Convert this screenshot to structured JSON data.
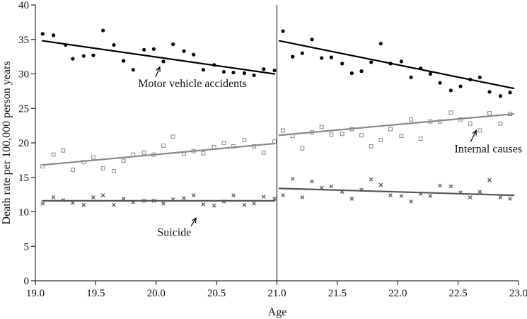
{
  "chart_data": {
    "type": "scatter",
    "title": "",
    "xlabel": "Age",
    "ylabel": "Death rate per 100,000 person years",
    "xlim": [
      19.0,
      23.0
    ],
    "ylim": [
      0,
      40
    ],
    "xticks": [
      "19.0",
      "19.5",
      "20.0",
      "20.5",
      "21.0",
      "21.5",
      "22.0",
      "22.5",
      "23.0"
    ],
    "yticks": [
      "0",
      "5",
      "10",
      "15",
      "20",
      "25",
      "30",
      "35",
      "40"
    ],
    "grid": false,
    "legend": "none",
    "cutoff_x": 21.0,
    "series": [
      {
        "name": "Motor vehicle accidents",
        "marker": "dot",
        "color": "#000000",
        "points": [
          [
            19.06,
            35.8
          ],
          [
            19.15,
            35.6
          ],
          [
            19.25,
            34.2
          ],
          [
            19.31,
            32.2
          ],
          [
            19.4,
            32.6
          ],
          [
            19.48,
            32.7
          ],
          [
            19.56,
            36.3
          ],
          [
            19.65,
            34.2
          ],
          [
            19.73,
            31.9
          ],
          [
            19.81,
            30.6
          ],
          [
            19.9,
            33.5
          ],
          [
            19.98,
            33.6
          ],
          [
            20.06,
            31.8
          ],
          [
            20.14,
            34.3
          ],
          [
            20.23,
            33.3
          ],
          [
            20.31,
            32.8
          ],
          [
            20.39,
            30.6
          ],
          [
            20.48,
            31.3
          ],
          [
            20.56,
            30.3
          ],
          [
            20.64,
            30.2
          ],
          [
            20.73,
            30.1
          ],
          [
            20.81,
            29.8
          ],
          [
            20.89,
            30.7
          ],
          [
            20.98,
            30.5
          ],
          [
            21.05,
            36.2
          ],
          [
            21.13,
            32.5
          ],
          [
            21.21,
            33.0
          ],
          [
            21.29,
            35.0
          ],
          [
            21.37,
            32.3
          ],
          [
            21.45,
            32.4
          ],
          [
            21.54,
            31.5
          ],
          [
            21.62,
            30.1
          ],
          [
            21.7,
            30.4
          ],
          [
            21.78,
            31.7
          ],
          [
            21.86,
            34.4
          ],
          [
            21.94,
            31.5
          ],
          [
            22.03,
            31.8
          ],
          [
            22.11,
            29.5
          ],
          [
            22.19,
            30.8
          ],
          [
            22.27,
            30.0
          ],
          [
            22.35,
            28.7
          ],
          [
            22.44,
            27.6
          ],
          [
            22.52,
            28.2
          ],
          [
            22.6,
            29.2
          ],
          [
            22.68,
            29.5
          ],
          [
            22.76,
            27.4
          ],
          [
            22.85,
            26.8
          ],
          [
            22.93,
            27.3
          ]
        ],
        "fits": [
          {
            "x": [
              19.06,
              20.98
            ],
            "y": [
              34.8,
              30.0
            ]
          },
          {
            "x": [
              21.02,
              22.96
            ],
            "y": [
              34.8,
              27.9
            ]
          }
        ]
      },
      {
        "name": "Internal causes",
        "marker": "square",
        "color": "#888888",
        "points": [
          [
            19.06,
            16.6
          ],
          [
            19.15,
            18.3
          ],
          [
            19.23,
            18.9
          ],
          [
            19.31,
            16.1
          ],
          [
            19.4,
            17.2
          ],
          [
            19.48,
            17.9
          ],
          [
            19.56,
            16.3
          ],
          [
            19.65,
            15.9
          ],
          [
            19.73,
            17.4
          ],
          [
            19.81,
            18.3
          ],
          [
            19.9,
            18.6
          ],
          [
            19.98,
            18.3
          ],
          [
            20.06,
            19.6
          ],
          [
            20.14,
            20.9
          ],
          [
            20.23,
            18.4
          ],
          [
            20.31,
            18.8
          ],
          [
            20.39,
            18.5
          ],
          [
            20.48,
            19.4
          ],
          [
            20.56,
            20.0
          ],
          [
            20.64,
            19.5
          ],
          [
            20.73,
            20.4
          ],
          [
            20.81,
            19.5
          ],
          [
            20.89,
            18.6
          ],
          [
            20.98,
            20.2
          ],
          [
            21.05,
            21.8
          ],
          [
            21.13,
            21.0
          ],
          [
            21.21,
            19.2
          ],
          [
            21.29,
            21.5
          ],
          [
            21.37,
            22.3
          ],
          [
            21.45,
            21.2
          ],
          [
            21.54,
            21.3
          ],
          [
            21.62,
            22.0
          ],
          [
            21.7,
            21.1
          ],
          [
            21.78,
            19.5
          ],
          [
            21.86,
            20.4
          ],
          [
            21.94,
            22.0
          ],
          [
            22.03,
            21.0
          ],
          [
            22.11,
            23.4
          ],
          [
            22.19,
            20.6
          ],
          [
            22.27,
            23.1
          ],
          [
            22.35,
            23.1
          ],
          [
            22.44,
            24.4
          ],
          [
            22.52,
            23.4
          ],
          [
            22.6,
            22.8
          ],
          [
            22.68,
            21.8
          ],
          [
            22.76,
            24.3
          ],
          [
            22.85,
            22.8
          ],
          [
            22.93,
            24.2
          ]
        ],
        "fits": [
          {
            "x": [
              19.06,
              20.98
            ],
            "y": [
              16.8,
              19.9
            ]
          },
          {
            "x": [
              21.02,
              22.96
            ],
            "y": [
              21.1,
              24.2
            ]
          }
        ]
      },
      {
        "name": "Suicide",
        "marker": "x",
        "color": "#555555",
        "points": [
          [
            19.06,
            11.2
          ],
          [
            19.15,
            12.1
          ],
          [
            19.23,
            11.7
          ],
          [
            19.31,
            11.3
          ],
          [
            19.4,
            11.0
          ],
          [
            19.48,
            12.1
          ],
          [
            19.56,
            12.4
          ],
          [
            19.65,
            11.0
          ],
          [
            19.73,
            11.9
          ],
          [
            19.81,
            11.4
          ],
          [
            19.9,
            11.6
          ],
          [
            19.98,
            11.6
          ],
          [
            20.06,
            11.2
          ],
          [
            20.14,
            11.8
          ],
          [
            20.23,
            12.0
          ],
          [
            20.31,
            12.4
          ],
          [
            20.39,
            11.1
          ],
          [
            20.48,
            10.9
          ],
          [
            20.56,
            11.5
          ],
          [
            20.64,
            12.4
          ],
          [
            20.73,
            11.0
          ],
          [
            20.81,
            11.2
          ],
          [
            20.89,
            12.2
          ],
          [
            20.98,
            11.9
          ],
          [
            21.05,
            12.4
          ],
          [
            21.13,
            14.8
          ],
          [
            21.21,
            12.1
          ],
          [
            21.29,
            14.4
          ],
          [
            21.37,
            13.5
          ],
          [
            21.45,
            13.7
          ],
          [
            21.54,
            12.9
          ],
          [
            21.62,
            11.9
          ],
          [
            21.7,
            13.2
          ],
          [
            21.78,
            14.7
          ],
          [
            21.86,
            13.9
          ],
          [
            21.94,
            12.4
          ],
          [
            22.03,
            12.3
          ],
          [
            22.11,
            11.5
          ],
          [
            22.19,
            12.6
          ],
          [
            22.27,
            12.3
          ],
          [
            22.35,
            13.8
          ],
          [
            22.44,
            13.7
          ],
          [
            22.52,
            12.8
          ],
          [
            22.6,
            12.1
          ],
          [
            22.68,
            12.9
          ],
          [
            22.76,
            14.6
          ],
          [
            22.85,
            12.1
          ],
          [
            22.93,
            11.9
          ]
        ],
        "fits": [
          {
            "x": [
              19.06,
              20.98
            ],
            "y": [
              11.6,
              11.6
            ]
          },
          {
            "x": [
              21.02,
              22.96
            ],
            "y": [
              13.4,
              12.4
            ]
          }
        ]
      }
    ],
    "annotations": [
      {
        "text": "Motor vehicle accidents",
        "x": 20.3,
        "y": 28.1,
        "arrow_to": [
          20.03,
          31.0
        ]
      },
      {
        "text": "Internal causes",
        "x": 22.75,
        "y": 18.6,
        "arrow_to": [
          22.65,
          21.8
        ]
      },
      {
        "text": "Suicide",
        "x": 20.15,
        "y": 6.5,
        "arrow_to": [
          20.33,
          9.1
        ]
      }
    ]
  }
}
